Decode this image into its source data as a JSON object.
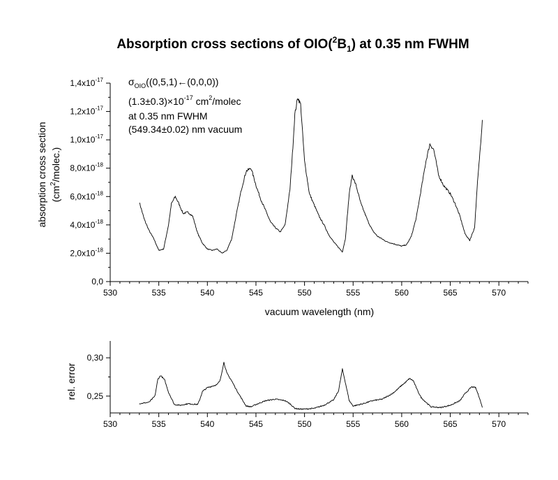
{
  "title": {
    "prefix": "Absorption cross sections of OIO(",
    "sup": "2",
    "main": "B",
    "sub": "1",
    "suffix": ") at 0.35 nm FWHM"
  },
  "annotation": {
    "sigma": "σ",
    "sigma_sub": "OIO",
    "transition": "((0,5,1)←(0,0,0))",
    "value_prefix": "(1.3±0.3)×10",
    "value_exp": "-17",
    "value_suffix": " cm",
    "value_unit_exp": "2",
    "value_unit_tail": "/molec",
    "fwhm": "at 0.35 nm FWHM",
    "wavelength": "(549.34±0.02) nm vacuum"
  },
  "chart_data": [
    {
      "type": "line",
      "xlabel": "vacuum wavelength (nm)",
      "ylabel_line1": "absorption cross section",
      "ylabel_line2_prefix": "(cm",
      "ylabel_line2_sup": "2",
      "ylabel_line2_suffix": "/molec.)",
      "xlim": [
        530,
        573
      ],
      "ylim": [
        0,
        1.4e-17
      ],
      "x_ticks": [
        530,
        535,
        540,
        545,
        550,
        555,
        560,
        565,
        570
      ],
      "y_ticks": [
        {
          "value": 0,
          "mant": "0,0",
          "exp": ""
        },
        {
          "value": 2e-18,
          "mant": "2,0x10",
          "exp": "-18"
        },
        {
          "value": 4e-18,
          "mant": "4,0x10",
          "exp": "-18"
        },
        {
          "value": 6e-18,
          "mant": "6,0x10",
          "exp": "-18"
        },
        {
          "value": 8e-18,
          "mant": "8,0x10",
          "exp": "-18"
        },
        {
          "value": 1e-17,
          "mant": "1,0x10",
          "exp": "-17"
        },
        {
          "value": 1.2e-17,
          "mant": "1,2x10",
          "exp": "-17"
        },
        {
          "value": 1.4e-17,
          "mant": "1,4x10",
          "exp": "-17"
        }
      ],
      "series": [
        {
          "x": [
            533.0,
            533.5,
            534.0,
            534.5,
            535.0,
            535.5,
            536.0,
            536.3,
            536.7,
            537.0,
            537.5,
            538.0,
            538.5,
            539.0,
            539.5,
            540.0,
            540.5,
            541.0,
            541.5,
            542.0,
            542.5,
            543.0,
            543.5,
            544.0,
            544.5,
            545.0,
            545.5,
            546.0,
            546.5,
            547.0,
            547.5,
            548.0,
            548.5,
            548.8,
            549.0,
            549.3,
            549.6,
            550.0,
            550.5,
            551.0,
            551.5,
            552.0,
            552.5,
            553.0,
            553.5,
            553.9,
            554.2,
            554.6,
            554.9,
            555.3,
            555.8,
            556.5,
            557.0,
            557.5,
            558.0,
            558.5,
            559.0,
            559.5,
            560.0,
            560.5,
            561.0,
            561.5,
            562.0,
            562.5,
            562.9,
            563.3,
            563.8,
            564.3,
            565.0,
            565.5,
            566.0,
            566.5,
            567.0,
            567.5,
            567.8,
            568.1,
            568.3
          ],
          "y": [
            5.6e-18,
            4.4e-18,
            3.6e-18,
            3e-18,
            2.2e-18,
            2.3e-18,
            4e-18,
            5.5e-18,
            6e-18,
            5.6e-18,
            4.8e-18,
            4.9e-18,
            4.6e-18,
            3.4e-18,
            2.7e-18,
            2.3e-18,
            2.2e-18,
            2.3e-18,
            2e-18,
            2.2e-18,
            3e-18,
            4.8e-18,
            6.5e-18,
            7.8e-18,
            8e-18,
            6.8e-18,
            5.8e-18,
            5e-18,
            4.2e-18,
            3.8e-18,
            3.5e-18,
            4e-18,
            6.5e-18,
            9.5e-18,
            1.18e-17,
            1.3e-17,
            1.25e-17,
            8.5e-18,
            6.2e-18,
            5.4e-18,
            4.6e-18,
            4e-18,
            3.3e-18,
            2.8e-18,
            2.4e-18,
            2.1e-18,
            3e-18,
            6.2e-18,
            7.5e-18,
            6.8e-18,
            5.5e-18,
            4.3e-18,
            3.6e-18,
            3.2e-18,
            3e-18,
            2.8e-18,
            2.7e-18,
            2.6e-18,
            2.5e-18,
            2.6e-18,
            3.2e-18,
            4.5e-18,
            6.5e-18,
            8.5e-18,
            9.7e-18,
            9.3e-18,
            7.5e-18,
            6.8e-18,
            6.2e-18,
            5.5e-18,
            4.6e-18,
            3.4e-18,
            2.9e-18,
            3.8e-18,
            7e-18,
            9.5e-18,
            1.14e-17
          ]
        }
      ]
    },
    {
      "type": "line",
      "ylabel": "rel. error",
      "xlim": [
        530,
        573
      ],
      "ylim": [
        0.228,
        0.322
      ],
      "x_ticks": [
        530,
        535,
        540,
        545,
        550,
        555,
        560,
        565,
        570
      ],
      "y_ticks": [
        {
          "value": 0.25,
          "label": "0,25"
        },
        {
          "value": 0.3,
          "label": "0,30"
        }
      ],
      "series": [
        {
          "x": [
            533.0,
            534.0,
            534.6,
            534.9,
            535.2,
            535.6,
            536.0,
            536.6,
            537.2,
            538.0,
            539.0,
            539.2,
            539.5,
            540.0,
            540.5,
            541.0,
            541.3,
            541.7,
            542.0,
            542.5,
            543.0,
            543.6,
            544.0,
            544.5,
            545.0,
            546.0,
            547.0,
            548.0,
            548.5,
            549.0,
            549.5,
            550.0,
            551.0,
            552.0,
            553.0,
            553.5,
            553.9,
            554.2,
            554.6,
            555.0,
            556.0,
            557.0,
            558.0,
            559.0,
            559.5,
            560.0,
            560.4,
            560.8,
            561.2,
            561.6,
            562.0,
            563.0,
            564.0,
            565.0,
            566.0,
            566.5,
            567.2,
            567.6,
            568.0,
            568.3
          ],
          "y": [
            0.24,
            0.242,
            0.25,
            0.272,
            0.277,
            0.271,
            0.255,
            0.239,
            0.238,
            0.24,
            0.239,
            0.245,
            0.256,
            0.261,
            0.263,
            0.265,
            0.27,
            0.294,
            0.28,
            0.27,
            0.258,
            0.245,
            0.237,
            0.236,
            0.239,
            0.244,
            0.246,
            0.244,
            0.24,
            0.234,
            0.233,
            0.233,
            0.234,
            0.238,
            0.245,
            0.257,
            0.285,
            0.268,
            0.244,
            0.237,
            0.24,
            0.244,
            0.246,
            0.253,
            0.258,
            0.264,
            0.268,
            0.273,
            0.27,
            0.258,
            0.248,
            0.236,
            0.235,
            0.238,
            0.244,
            0.253,
            0.262,
            0.261,
            0.248,
            0.235
          ]
        }
      ]
    }
  ]
}
